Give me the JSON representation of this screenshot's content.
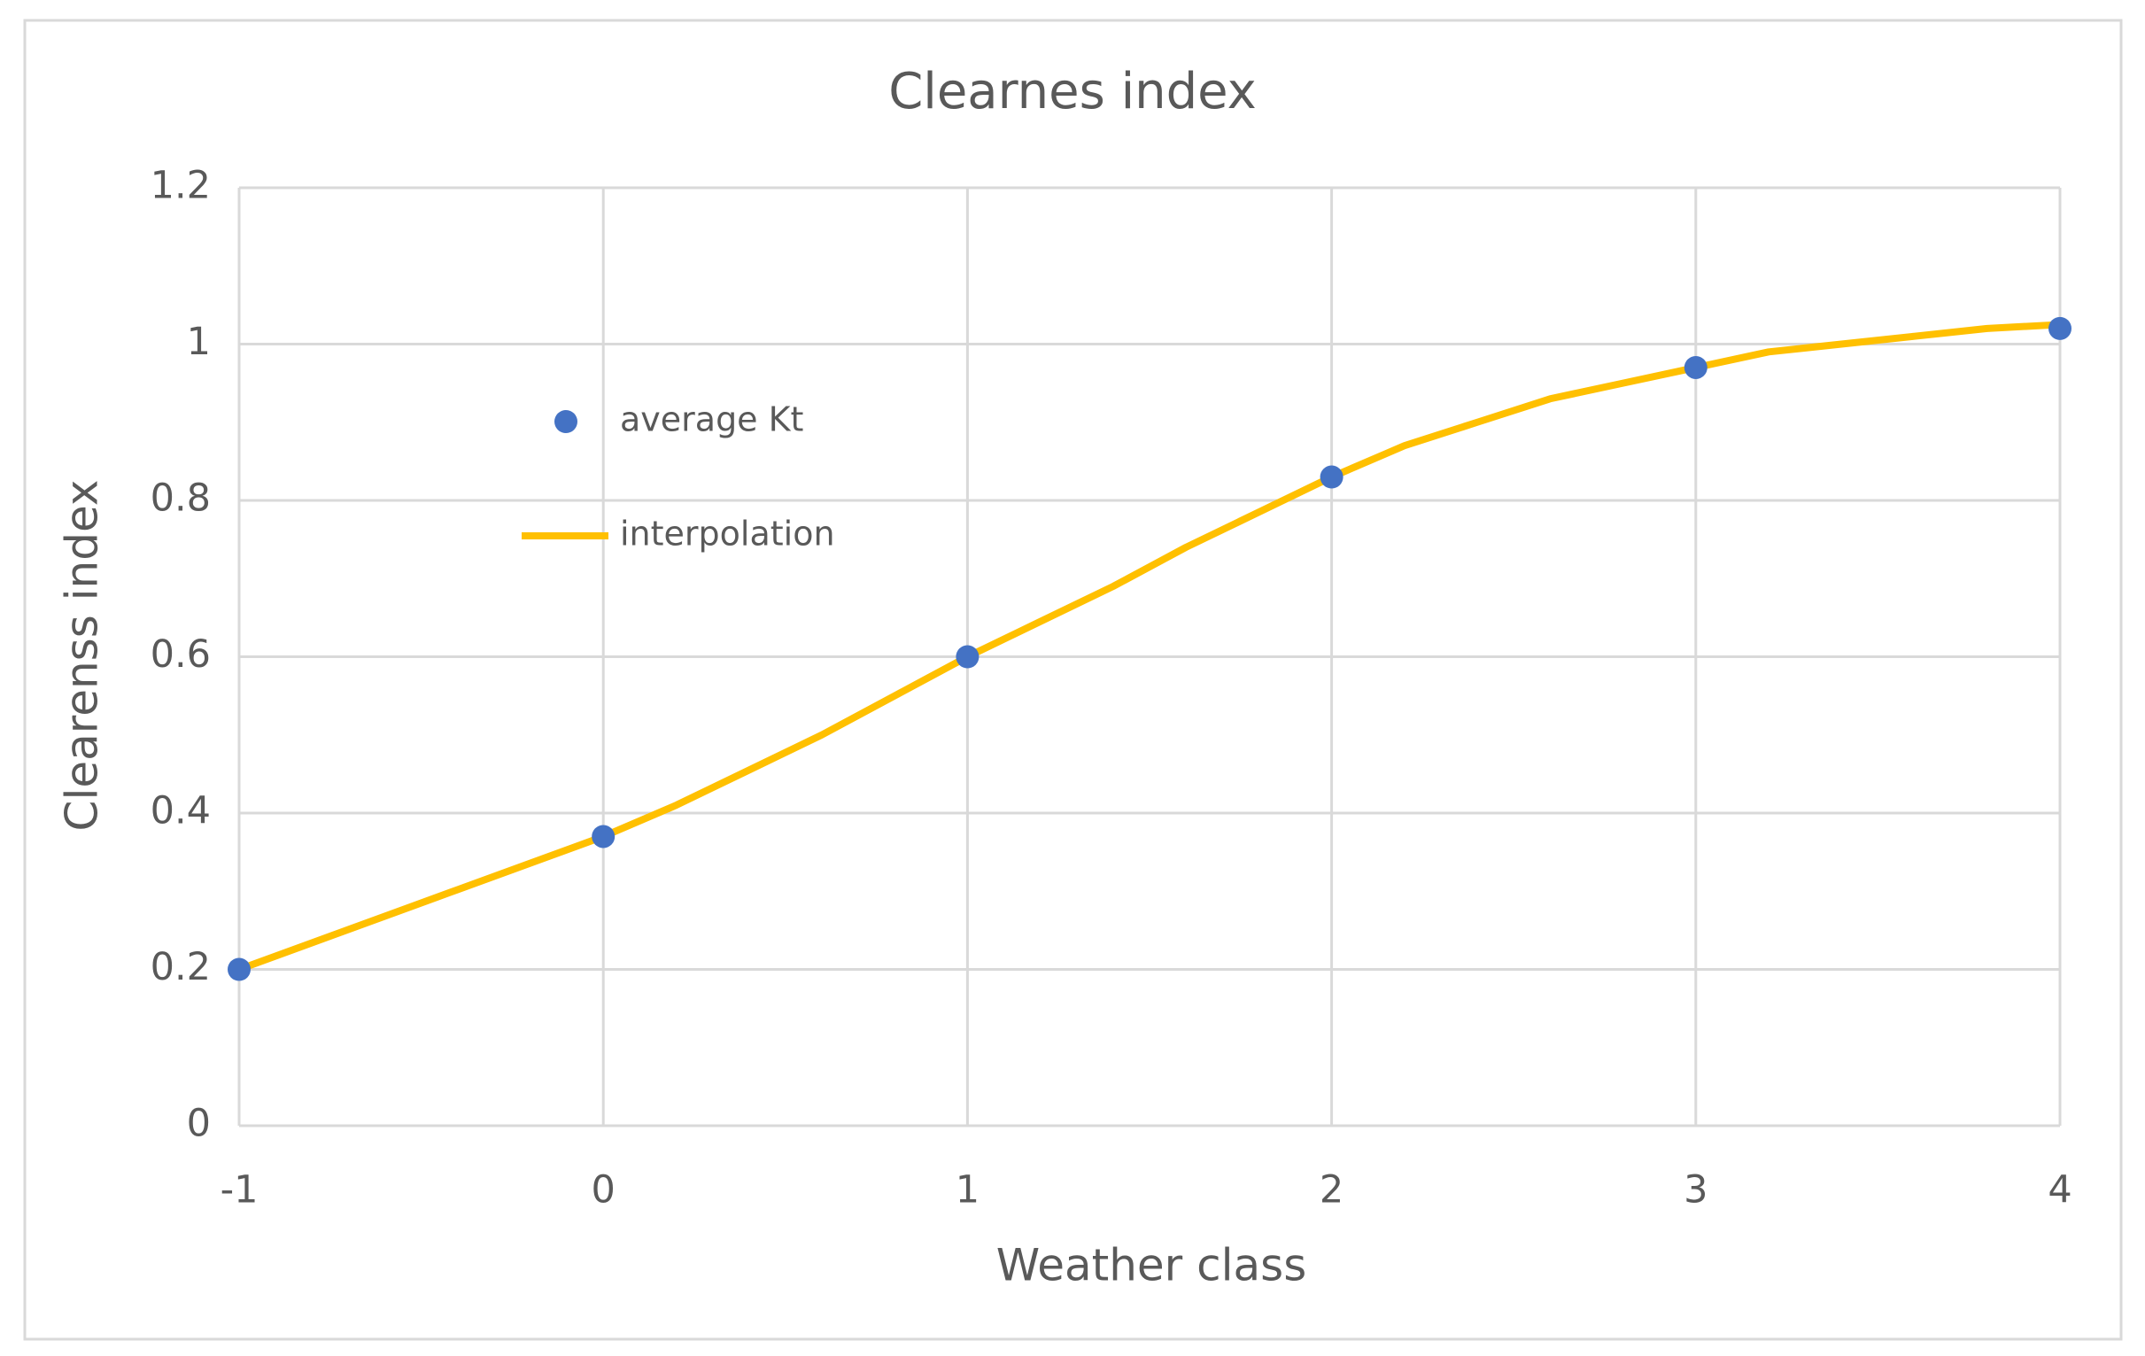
{
  "chart_data": {
    "type": "scatter",
    "title": "Clearnes index",
    "x_label": "Weather class",
    "y_label": "Clearenss index",
    "xlim": [
      -1,
      4
    ],
    "xticks": [
      -1,
      0,
      1,
      2,
      3,
      4
    ],
    "ylim": [
      0,
      1.2
    ],
    "yticks": [
      0,
      0.2,
      0.4,
      0.6,
      0.8,
      1,
      1.2
    ],
    "grid": true,
    "series": [
      {
        "name": "average Kt",
        "kind": "scatter",
        "color": "#4472c4",
        "x": [
          -1,
          0,
          1,
          2,
          3,
          4
        ],
        "values": [
          0.2,
          0.37,
          0.6,
          0.83,
          0.97,
          1.02
        ]
      },
      {
        "name": "interpolation",
        "kind": "line",
        "color": "#ffc000",
        "x": [
          -1,
          -0.8,
          -0.6,
          -0.4,
          -0.2,
          0,
          0.2,
          0.4,
          0.6,
          0.8,
          1,
          1.2,
          1.4,
          1.6,
          1.8,
          2,
          2.2,
          2.4,
          2.6,
          2.8,
          3,
          3.2,
          3.4,
          3.6,
          3.8,
          4
        ],
        "values": [
          0.2,
          0.234,
          0.268,
          0.302,
          0.336,
          0.37,
          0.41,
          0.455,
          0.5,
          0.55,
          0.6,
          0.645,
          0.69,
          0.74,
          0.785,
          0.83,
          0.87,
          0.9,
          0.93,
          0.95,
          0.97,
          0.99,
          1.0,
          1.01,
          1.02,
          1.025
        ]
      }
    ]
  }
}
